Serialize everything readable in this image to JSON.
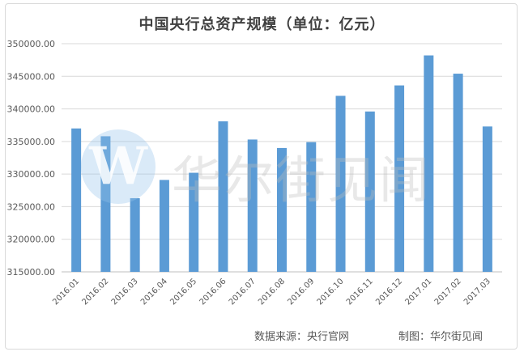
{
  "chart_data": {
    "type": "bar",
    "title": "中国央行总资产规模（单位：亿元）",
    "categories": [
      "2016.01",
      "2016.02",
      "2016.03",
      "2016.04",
      "2016.05",
      "2016.06",
      "2016.07",
      "2016.08",
      "2016.09",
      "2016.10",
      "2016.11",
      "2016.12",
      "2017.01",
      "2017.02",
      "2017.03"
    ],
    "values": [
      337000,
      335800,
      326300,
      329100,
      330200,
      338100,
      335300,
      334000,
      334900,
      342000,
      339600,
      343600,
      348200,
      345400,
      337300
    ],
    "ylim": [
      315000,
      350000
    ],
    "yticks": [
      "315000.00",
      "320000.00",
      "325000.00",
      "330000.00",
      "335000.00",
      "340000.00",
      "345000.00",
      "350000.00"
    ],
    "ytick_values": [
      315000,
      320000,
      325000,
      330000,
      335000,
      340000,
      345000,
      350000
    ],
    "grid": true,
    "legend": "none",
    "bar_color": "#5b9bd5",
    "xlabel": "",
    "ylabel": ""
  },
  "footer": {
    "source": "数据来源：央行官网",
    "credit": "制图：华尔街见闻"
  },
  "watermark": {
    "logo_letter": "W",
    "text": "华尔街见闻"
  }
}
